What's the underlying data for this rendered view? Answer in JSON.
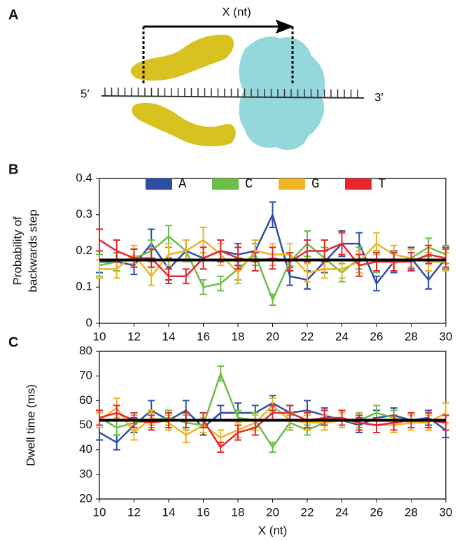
{
  "diagram": {
    "label": "A",
    "arrow_label": "X (nt)",
    "five_prime": "5′",
    "three_prime": "3′"
  },
  "chart_data": [
    {
      "type": "errorline",
      "panel_label": "B",
      "ylabel": [
        "Probability of",
        "backwards step"
      ],
      "x": [
        10,
        11,
        12,
        13,
        14,
        15,
        16,
        17,
        18,
        19,
        20,
        21,
        22,
        23,
        24,
        25,
        26,
        27,
        28,
        29,
        30
      ],
      "xlim": [
        10,
        30
      ],
      "xticks": [
        10,
        12,
        14,
        16,
        18,
        20,
        22,
        24,
        26,
        28,
        30
      ],
      "ylim": [
        0,
        0.4
      ],
      "yticks": [
        0,
        0.1,
        0.2,
        0.3,
        0.4
      ],
      "legend": "top",
      "reference_line": {
        "value": 0.175,
        "color": "#000000"
      },
      "series": [
        {
          "name": "A",
          "color": "#2e4fa3",
          "values": [
            0.17,
            0.17,
            0.16,
            0.22,
            0.15,
            0.2,
            0.18,
            0.2,
            0.19,
            0.2,
            0.3,
            0.13,
            0.12,
            0.17,
            0.22,
            0.22,
            0.11,
            0.17,
            0.18,
            0.12,
            0.18
          ],
          "errors": [
            0.03,
            0.025,
            0.025,
            0.04,
            0.03,
            0.03,
            0.03,
            0.03,
            0.03,
            0.03,
            0.035,
            0.025,
            0.025,
            0.03,
            0.035,
            0.03,
            0.02,
            0.03,
            0.03,
            0.025,
            0.03
          ]
        },
        {
          "name": "C",
          "color": "#6abf45",
          "values": [
            0.16,
            0.17,
            0.18,
            0.2,
            0.24,
            0.2,
            0.1,
            0.11,
            0.15,
            0.19,
            0.065,
            0.17,
            0.22,
            0.18,
            0.14,
            0.18,
            0.17,
            0.17,
            0.18,
            0.21,
            0.19
          ],
          "errors": [
            0.03,
            0.025,
            0.025,
            0.03,
            0.03,
            0.03,
            0.02,
            0.02,
            0.03,
            0.03,
            0.015,
            0.025,
            0.035,
            0.03,
            0.025,
            0.03,
            0.03,
            0.025,
            0.025,
            0.025,
            0.025
          ]
        },
        {
          "name": "G",
          "color": "#f0b323",
          "values": [
            0.15,
            0.15,
            0.19,
            0.13,
            0.19,
            0.2,
            0.23,
            0.19,
            0.14,
            0.2,
            0.19,
            0.19,
            0.14,
            0.15,
            0.15,
            0.17,
            0.22,
            0.19,
            0.18,
            0.17,
            0.17
          ],
          "errors": [
            0.025,
            0.025,
            0.025,
            0.025,
            0.03,
            0.03,
            0.035,
            0.03,
            0.03,
            0.03,
            0.03,
            0.03,
            0.025,
            0.025,
            0.025,
            0.03,
            0.03,
            0.025,
            0.025,
            0.025,
            0.025
          ]
        },
        {
          "name": "T",
          "color": "#e8262b",
          "values": [
            0.23,
            0.2,
            0.18,
            0.18,
            0.13,
            0.13,
            0.18,
            0.2,
            0.18,
            0.17,
            0.18,
            0.17,
            0.2,
            0.2,
            0.22,
            0.16,
            0.17,
            0.17,
            0.17,
            0.19,
            0.18
          ],
          "errors": [
            0.03,
            0.03,
            0.025,
            0.025,
            0.02,
            0.02,
            0.03,
            0.03,
            0.03,
            0.025,
            0.03,
            0.025,
            0.03,
            0.03,
            0.03,
            0.03,
            0.025,
            0.025,
            0.025,
            0.025,
            0.025
          ]
        }
      ]
    },
    {
      "type": "errorline",
      "panel_label": "C",
      "ylabel": [
        "Dwell time (ms)"
      ],
      "xlabel": "X (nt)",
      "x": [
        10,
        11,
        12,
        13,
        14,
        15,
        16,
        17,
        18,
        19,
        20,
        21,
        22,
        23,
        24,
        25,
        26,
        27,
        28,
        29,
        30
      ],
      "xlim": [
        10,
        30
      ],
      "xticks": [
        10,
        12,
        14,
        16,
        18,
        20,
        22,
        24,
        26,
        28,
        30
      ],
      "ylim": [
        20,
        80
      ],
      "yticks": [
        20,
        30,
        40,
        50,
        60,
        70,
        80
      ],
      "reference_line": {
        "value": 52,
        "color": "#000000"
      },
      "series": [
        {
          "name": "A",
          "color": "#2e4fa3",
          "values": [
            47,
            43,
            50,
            56,
            52,
            56,
            49,
            55,
            55,
            55,
            59,
            55,
            56,
            54,
            52,
            50,
            53,
            54,
            52,
            53,
            48
          ],
          "errors": [
            3,
            3,
            3,
            4,
            3,
            4,
            3,
            3,
            4,
            3,
            3,
            3,
            4,
            3,
            3,
            3,
            3,
            3,
            3,
            3,
            3
          ]
        },
        {
          "name": "C",
          "color": "#6abf45",
          "values": [
            53,
            49,
            51,
            52,
            53,
            51,
            50,
            71,
            53,
            52,
            41,
            51,
            48,
            51,
            52,
            52,
            55,
            53,
            51,
            52,
            51
          ],
          "errors": [
            3,
            3,
            3,
            3,
            3,
            3,
            3,
            3,
            3,
            3,
            2,
            3,
            2,
            3,
            3,
            3,
            3,
            3,
            3,
            3,
            3
          ]
        },
        {
          "name": "G",
          "color": "#f0b323",
          "values": [
            52,
            57,
            47,
            53,
            51,
            46,
            50,
            45,
            48,
            51,
            58,
            52,
            51,
            51,
            52,
            51,
            50,
            50,
            51,
            51,
            55
          ],
          "errors": [
            3,
            4,
            3,
            3,
            3,
            3,
            3,
            3,
            3,
            3,
            3,
            3,
            3,
            3,
            3,
            3,
            3,
            3,
            3,
            3,
            4
          ]
        },
        {
          "name": "T",
          "color": "#e8262b",
          "values": [
            53,
            55,
            52,
            51,
            52,
            52,
            52,
            41,
            47,
            49,
            55,
            55,
            52,
            53,
            53,
            51,
            50,
            51,
            52,
            52,
            51
          ],
          "errors": [
            3,
            3,
            3,
            3,
            3,
            3,
            3,
            2,
            3,
            3,
            3,
            3,
            3,
            3,
            3,
            3,
            3,
            3,
            3,
            3,
            3
          ]
        }
      ]
    }
  ]
}
